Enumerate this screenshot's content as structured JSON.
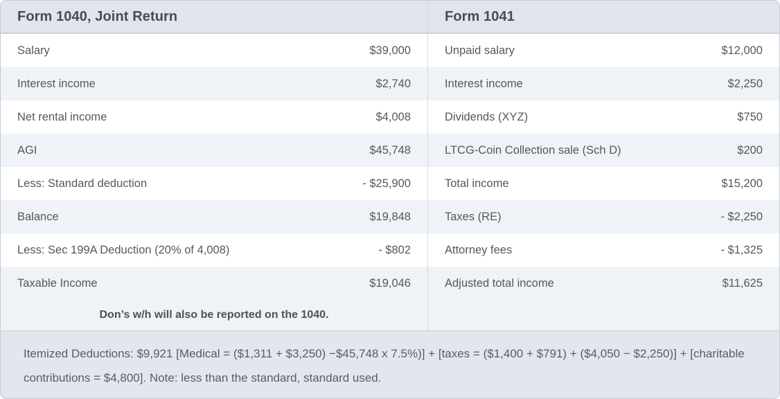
{
  "left": {
    "header": "Form 1040, Joint Return",
    "rows": [
      {
        "label": "Salary",
        "value": "$39,000"
      },
      {
        "label": "Interest income",
        "value": "$2,740"
      },
      {
        "label": "Net rental income",
        "value": "$4,008"
      },
      {
        "label": "AGI",
        "value": "$45,748"
      },
      {
        "label": "Less: Standard deduction",
        "value": "- $25,900"
      },
      {
        "label": "Balance",
        "value": "$19,848"
      },
      {
        "label": "Less: Sec 199A Deduction (20% of 4,008)",
        "value": "- $802"
      },
      {
        "label": "Taxable Income",
        "value": "$19,046"
      }
    ],
    "note": "Don’s w/h will also be reported on the 1040."
  },
  "right": {
    "header": "Form 1041",
    "rows": [
      {
        "label": "Unpaid salary",
        "value": "$12,000"
      },
      {
        "label": "Interest income",
        "value": "$2,250"
      },
      {
        "label": "Dividends (XYZ)",
        "value": "$750"
      },
      {
        "label": "LTCG-Coin Collection sale (Sch D)",
        "value": "$200"
      },
      {
        "label": "Total income",
        "value": "$15,200"
      },
      {
        "label": "Taxes (RE)",
        "value": "- $2,250"
      },
      {
        "label": "Attorney fees",
        "value": "- $1,325"
      },
      {
        "label": "Adjusted total income",
        "value": "$11,625"
      }
    ]
  },
  "footer": {
    "text": "Itemized Deductions: $9,921 [Medical = ($1,311 + $3,250) −$45,748 x 7.5%)] + [taxes = ($1,400 + $791) + ($4,050 − $2,250)] + [charitable contributions = $4,800]. Note: less than the standard, standard used."
  },
  "colors": {
    "header_bg": "#dfe5eb",
    "footer_bg": "#e1e7ed",
    "row_bg": "#ffffff",
    "row_alt_bg": "#eff2f6",
    "outer_border": "#c3cad2",
    "column_divider": "#d5dae0",
    "header_text": "#454c55",
    "row_text": "#53595f",
    "footer_text": "#575d64"
  }
}
